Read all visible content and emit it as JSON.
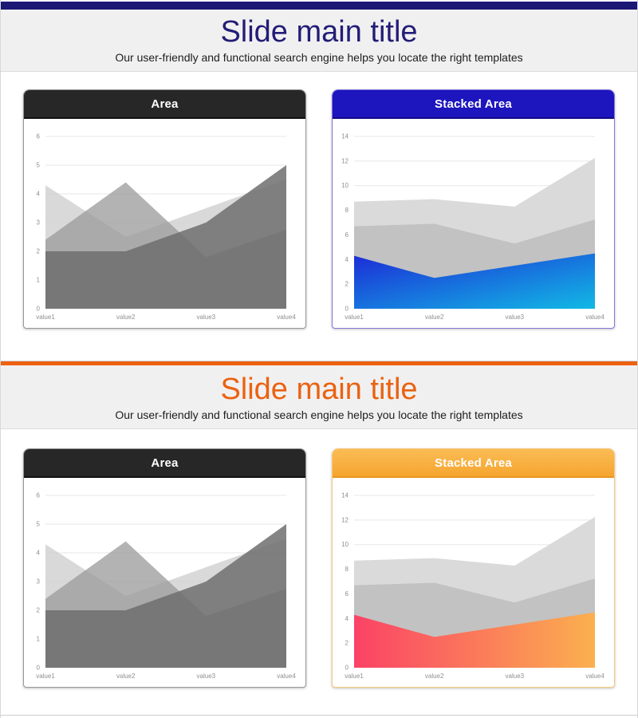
{
  "accents": {
    "top_bar_color": "#1b1775",
    "divider_color": "#ee6112",
    "slide1_title_color": "#221d76",
    "slide2_title_color": "#ea6211",
    "dark_header_color": "#272727",
    "blue_header_color": "#1d15be",
    "orange_header_color": "#f7a933"
  },
  "slide1": {
    "title": "Slide main title",
    "subtitle": "Our user-friendly and functional search engine helps you locate the right templates",
    "cards": [
      {
        "title": "Area"
      },
      {
        "title": "Stacked Area"
      }
    ]
  },
  "slide2": {
    "title": "Slide main title",
    "subtitle": "Our user-friendly and functional search engine helps you locate the right templates",
    "cards": [
      {
        "title": "Area"
      },
      {
        "title": "Stacked Area"
      }
    ]
  },
  "chart_data": [
    {
      "type": "area",
      "title": "Area",
      "categories": [
        "value1",
        "value2",
        "value3",
        "value4"
      ],
      "series": [
        {
          "values": [
            4.3,
            2.5,
            3.5,
            4.5
          ],
          "fill": "#cfcfcf",
          "opacity": 0.8
        },
        {
          "values": [
            2.4,
            4.4,
            1.8,
            2.75
          ],
          "fill": "#9a9a9a",
          "opacity": 0.75
        },
        {
          "values": [
            2.0,
            2.0,
            3.0,
            5.0
          ],
          "fill": "#6e6e6e",
          "opacity": 0.85
        }
      ],
      "xlabel": "",
      "ylabel": "",
      "ylim": [
        0,
        6
      ],
      "yticks": [
        0,
        1,
        2,
        3,
        4,
        5,
        6
      ],
      "grid": true,
      "grid_color": "#e7e7e7",
      "axis_text_color": "#8f8f8f",
      "legend": "none"
    },
    {
      "type": "area",
      "variant": "stacked",
      "title": "Stacked Area",
      "categories": [
        "value1",
        "value2",
        "value3",
        "value4"
      ],
      "series": [
        {
          "values": [
            4.3,
            2.5,
            3.5,
            4.5
          ],
          "gradient": {
            "from": "#1c2bd6",
            "to": "#12b9e5",
            "direction": "diagonal"
          }
        },
        {
          "values": [
            2.4,
            4.4,
            1.8,
            2.75
          ],
          "fill": "#c2c2c2"
        },
        {
          "values": [
            2.0,
            2.0,
            3.0,
            5.0
          ],
          "fill": "#dadada"
        }
      ],
      "stacked_totals": [
        8.7,
        8.9,
        8.3,
        12.25
      ],
      "xlabel": "",
      "ylabel": "",
      "ylim": [
        0,
        14
      ],
      "yticks": [
        0,
        2,
        4,
        6,
        8,
        10,
        12,
        14
      ],
      "grid": true,
      "grid_color": "#e7e7e7",
      "axis_text_color": "#8f8f8f",
      "legend": "none"
    },
    {
      "type": "area",
      "title": "Area",
      "categories": [
        "value1",
        "value2",
        "value3",
        "value4"
      ],
      "series": [
        {
          "values": [
            4.3,
            2.5,
            3.5,
            4.5
          ],
          "fill": "#cfcfcf",
          "opacity": 0.8
        },
        {
          "values": [
            2.4,
            4.4,
            1.8,
            2.75
          ],
          "fill": "#9a9a9a",
          "opacity": 0.75
        },
        {
          "values": [
            2.0,
            2.0,
            3.0,
            5.0
          ],
          "fill": "#6e6e6e",
          "opacity": 0.85
        }
      ],
      "xlabel": "",
      "ylabel": "",
      "ylim": [
        0,
        6
      ],
      "yticks": [
        0,
        1,
        2,
        3,
        4,
        5,
        6
      ],
      "grid": true,
      "grid_color": "#e7e7e7",
      "axis_text_color": "#8f8f8f",
      "legend": "none"
    },
    {
      "type": "area",
      "variant": "stacked",
      "title": "Stacked Area",
      "categories": [
        "value1",
        "value2",
        "value3",
        "value4"
      ],
      "series": [
        {
          "values": [
            4.3,
            2.5,
            3.5,
            4.5
          ],
          "gradient": {
            "from": "#fb4266",
            "to": "#fbb04f",
            "direction": "horizontal"
          }
        },
        {
          "values": [
            2.4,
            4.4,
            1.8,
            2.75
          ],
          "fill": "#c2c2c2"
        },
        {
          "values": [
            2.0,
            2.0,
            3.0,
            5.0
          ],
          "fill": "#dadada"
        }
      ],
      "stacked_totals": [
        8.7,
        8.9,
        8.3,
        12.25
      ],
      "xlabel": "",
      "ylabel": "",
      "ylim": [
        0,
        14
      ],
      "yticks": [
        0,
        2,
        4,
        6,
        8,
        10,
        12,
        14
      ],
      "grid": true,
      "grid_color": "#e7e7e7",
      "axis_text_color": "#8f8f8f",
      "legend": "none"
    }
  ]
}
